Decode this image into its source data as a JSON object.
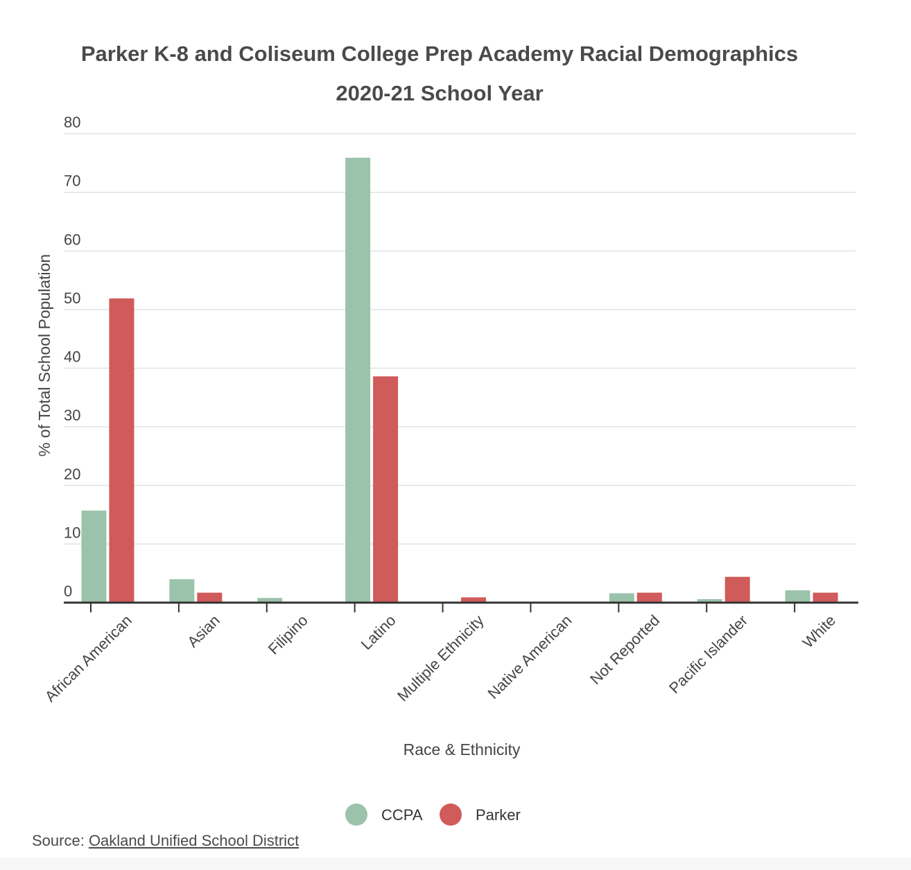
{
  "chart_data": {
    "type": "bar",
    "title_line1": "Parker K-8 and Coliseum College Prep Academy Racial Demographics",
    "title_line2": "2020-21 School Year",
    "xlabel": "Race & Ethnicity",
    "ylabel": "% of Total School Population",
    "ylim": [
      0,
      80
    ],
    "yticks": [
      "0",
      "10",
      "20",
      "30",
      "40",
      "50",
      "60",
      "70",
      "80"
    ],
    "grid": true,
    "legend_position": "bottom-center",
    "categories": [
      "African American",
      "Asian",
      "Filipino",
      "Latino",
      "Multiple Ethnicity",
      "Native American",
      "Not Reported",
      "Pacific Islander",
      "White"
    ],
    "series": [
      {
        "name": "CCPA",
        "color": "#9bc3ab",
        "values": [
          15.7,
          4.0,
          0.8,
          75.9,
          0,
          0,
          1.6,
          0.6,
          2.1
        ]
      },
      {
        "name": "Parker",
        "color": "#d05b5b",
        "values": [
          51.9,
          1.7,
          0,
          38.6,
          0.9,
          0,
          1.7,
          4.4,
          1.7
        ]
      }
    ]
  },
  "source": {
    "label": "Source: ",
    "link_text": "Oakland Unified School District"
  }
}
